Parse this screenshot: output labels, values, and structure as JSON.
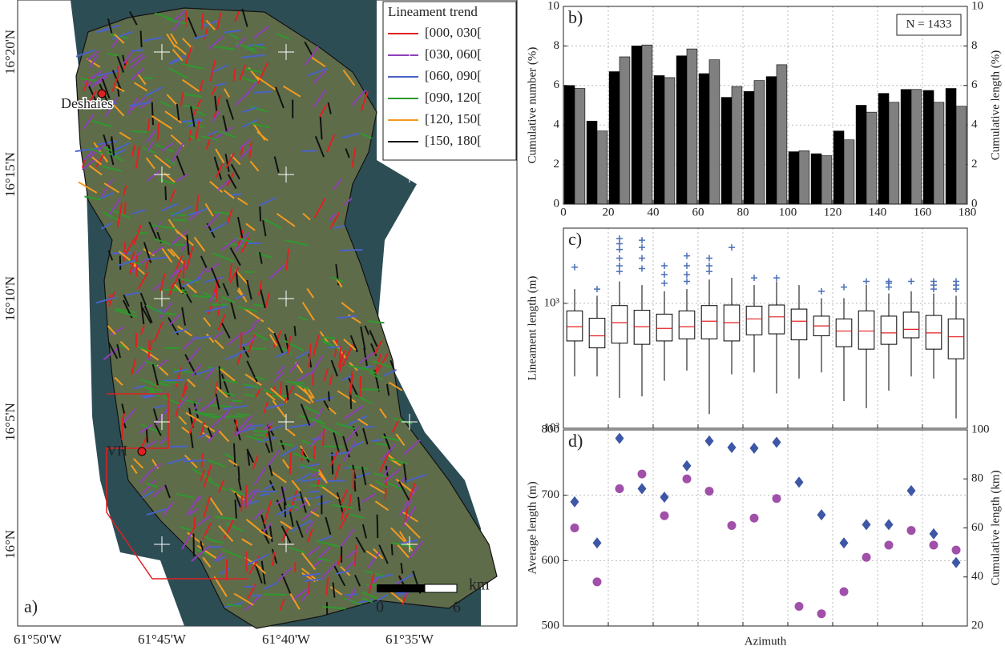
{
  "map": {
    "panel_label": "a)",
    "legend_title": "Lineament trend",
    "legend": [
      {
        "label": "[000, 030[",
        "color": "#e02020"
      },
      {
        "label": "[030, 060[",
        "color": "#8e3fb8"
      },
      {
        "label": "[060, 090[",
        "color": "#4a63c8"
      },
      {
        "label": "[090, 120[",
        "color": "#2e9a2e"
      },
      {
        "label": "[120, 150[",
        "color": "#f39a1e"
      },
      {
        "label": "[150, 180[",
        "color": "#111111"
      }
    ],
    "places": [
      "Deshaies",
      "VH"
    ],
    "lat_labels": [
      "16°20'N",
      "16°15'N",
      "16°10'N",
      "16°5'N",
      "16°N"
    ],
    "lon_labels": [
      "61°50'W",
      "61°45'W",
      "61°40'W",
      "61°35'W"
    ],
    "scale": {
      "ticks": [
        "0",
        "6"
      ],
      "unit": "km"
    }
  },
  "chart_data": [
    {
      "type": "bar",
      "panel_label": "b)",
      "annotation": "N = 1433",
      "y_label": "Cumulative number (%)",
      "y2_label": "Cumulative length (%)",
      "x": [
        5,
        15,
        25,
        35,
        45,
        55,
        65,
        75,
        85,
        95,
        105,
        115,
        125,
        135,
        145,
        155,
        165,
        175
      ],
      "xlim": [
        0,
        180
      ],
      "xticks": [
        0,
        20,
        40,
        60,
        80,
        100,
        120,
        140,
        160,
        180
      ],
      "ylim": [
        0,
        10
      ],
      "yticks": [
        0,
        2,
        4,
        6,
        8,
        10
      ],
      "y2lim": [
        0,
        10
      ],
      "y2ticks": [
        0,
        2,
        4,
        6,
        8,
        10
      ],
      "grid": true,
      "series": [
        {
          "color": "#000000",
          "values": [
            6.0,
            4.2,
            6.7,
            8.0,
            6.5,
            7.5,
            6.6,
            5.4,
            5.7,
            6.45,
            2.65,
            2.55,
            3.7,
            5.0,
            5.6,
            5.8,
            5.75,
            5.85
          ]
        },
        {
          "color": "#808080",
          "axis": "y2",
          "values": [
            5.85,
            3.7,
            7.45,
            8.05,
            6.4,
            7.85,
            7.3,
            5.95,
            6.25,
            7.05,
            2.7,
            2.45,
            3.25,
            4.65,
            5.15,
            5.8,
            5.15,
            4.95
          ]
        }
      ]
    },
    {
      "type": "box",
      "panel_label": "c)",
      "y_label": "Lineament length (m)",
      "log": true,
      "x": [
        5,
        15,
        25,
        35,
        45,
        55,
        65,
        75,
        85,
        95,
        105,
        115,
        125,
        135,
        145,
        155,
        165,
        175
      ],
      "xlim": [
        0,
        180
      ],
      "xticks": [
        0,
        20,
        40,
        60,
        80,
        100,
        120,
        140,
        160,
        180
      ],
      "ylim": [
        100,
        4000
      ],
      "yticks": [
        {
          "value": 100,
          "label": "10²"
        },
        {
          "value": 1000,
          "label": "10³"
        }
      ],
      "grid": true,
      "box_color": "#000000",
      "median_color": "#e02020",
      "outlier_color": "#4a6fb5",
      "boxes": [
        {
          "low": 260,
          "q1": 500,
          "median": 650,
          "q3": 870,
          "high": 1300,
          "outliers": [
            1950
          ]
        },
        {
          "low": 260,
          "q1": 440,
          "median": 550,
          "q3": 760,
          "high": 1150,
          "outliers": [
            1300
          ]
        },
        {
          "low": 175,
          "q1": 480,
          "median": 700,
          "q3": 960,
          "high": 1500,
          "outliers": [
            1800,
            2000,
            2300,
            2700,
            3000,
            3300
          ]
        },
        {
          "low": 180,
          "q1": 470,
          "median": 650,
          "q3": 880,
          "high": 1400,
          "outliers": [
            1900,
            2300,
            2800,
            3200
          ]
        },
        {
          "low": 240,
          "q1": 500,
          "median": 630,
          "q3": 820,
          "high": 1250,
          "outliers": [
            1450,
            1700,
            2000
          ]
        },
        {
          "low": 290,
          "q1": 520,
          "median": 650,
          "q3": 870,
          "high": 1300,
          "outliers": [
            1500,
            1700,
            2000,
            2400
          ]
        },
        {
          "low": 130,
          "q1": 520,
          "median": 720,
          "q3": 960,
          "high": 1550,
          "outliers": [
            1800,
            2000,
            2300
          ]
        },
        {
          "low": 270,
          "q1": 500,
          "median": 700,
          "q3": 970,
          "high": 1600,
          "outliers": [
            2800
          ]
        },
        {
          "low": 280,
          "q1": 560,
          "median": 750,
          "q3": 950,
          "high": 1400,
          "outliers": [
            1600
          ]
        },
        {
          "low": 190,
          "q1": 570,
          "median": 780,
          "q3": 970,
          "high": 1500,
          "outliers": [
            1600
          ]
        },
        {
          "low": 250,
          "q1": 510,
          "median": 720,
          "q3": 900,
          "high": 1400,
          "outliers": []
        },
        {
          "low": 280,
          "q1": 550,
          "median": 660,
          "q3": 790,
          "high": 1100,
          "outliers": [
            1250
          ]
        },
        {
          "low": 165,
          "q1": 450,
          "median": 600,
          "q3": 750,
          "high": 1100,
          "outliers": [
            1350
          ]
        },
        {
          "low": 145,
          "q1": 430,
          "median": 600,
          "q3": 870,
          "high": 1400,
          "outliers": [
            1500
          ]
        },
        {
          "low": 200,
          "q1": 470,
          "median": 580,
          "q3": 790,
          "high": 1200,
          "outliers": [
            1350,
            1450,
            1500
          ]
        },
        {
          "low": 260,
          "q1": 530,
          "median": 620,
          "q3": 850,
          "high": 1250,
          "outliers": [
            1500
          ]
        },
        {
          "low": 250,
          "q1": 430,
          "median": 580,
          "q3": 800,
          "high": 1200,
          "outliers": [
            1300,
            1400,
            1500
          ]
        },
        {
          "low": 120,
          "q1": 360,
          "median": 540,
          "q3": 750,
          "high": 1150,
          "outliers": [
            1300,
            1400,
            1500
          ]
        }
      ]
    },
    {
      "type": "scatter",
      "panel_label": "d)",
      "x_label": "Azimuth",
      "y_label": "Average length (m)",
      "y2_label": "Cumulative length (km)",
      "x": [
        5,
        15,
        25,
        35,
        45,
        55,
        65,
        75,
        85,
        95,
        105,
        115,
        125,
        135,
        145,
        155,
        165,
        175
      ],
      "xlim": [
        0,
        180
      ],
      "xticks": [
        0,
        20,
        40,
        60,
        80,
        100,
        120,
        140,
        160,
        180
      ],
      "ylim": [
        500,
        800
      ],
      "yticks": [
        500,
        600,
        700,
        800
      ],
      "y2lim": [
        20,
        100
      ],
      "y2ticks": [
        20,
        40,
        60,
        80,
        100
      ],
      "grid": true,
      "series": [
        {
          "color": "#3d57a6",
          "marker": "diamond",
          "values": [
            690,
            627,
            787,
            710,
            697,
            745,
            783,
            773,
            772,
            781,
            720,
            670,
            627,
            655,
            655,
            707,
            641,
            597
          ]
        },
        {
          "color": "#a050a8",
          "marker": "circle",
          "axis": "y2",
          "values": [
            60,
            38,
            76,
            82,
            65,
            80,
            75,
            61,
            64,
            72,
            28,
            25,
            34,
            48,
            53,
            59,
            53,
            51
          ]
        }
      ]
    }
  ]
}
